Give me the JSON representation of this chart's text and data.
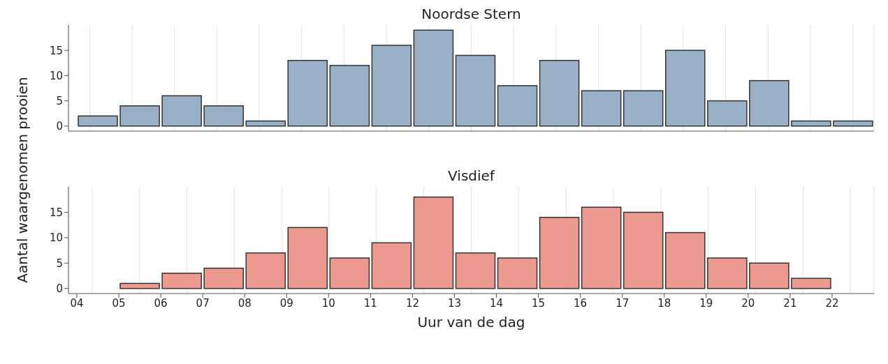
{
  "chart_data": [
    {
      "type": "histogram",
      "title": "Noordse Stern",
      "ylabel": "Aantal waargenomen prooien",
      "color": "#9ab0c7",
      "bins": [
        4,
        5,
        6,
        7,
        8,
        9,
        10,
        11,
        12,
        13,
        14,
        15,
        16,
        17,
        18,
        19,
        20,
        21,
        22,
        23
      ],
      "values": [
        2,
        4,
        6,
        4,
        1,
        13,
        12,
        16,
        19,
        14,
        8,
        13,
        7,
        7,
        15,
        5,
        9,
        1,
        1
      ],
      "xlim": [
        3.8,
        23
      ],
      "xticks": [
        4,
        5,
        6,
        7,
        8,
        9,
        10,
        11,
        12,
        13,
        14,
        15,
        16,
        17,
        18,
        19,
        20,
        21,
        22
      ],
      "ylim": [
        -1,
        20
      ],
      "yticks": [
        0,
        5,
        10,
        15
      ],
      "grid": "x",
      "tick_labels": "y"
    },
    {
      "type": "histogram",
      "title": "Visdief",
      "xlabel": "Uur van de dag",
      "color": "#ec9a90",
      "bins": [
        5,
        6,
        7,
        8,
        9,
        10,
        11,
        12,
        13,
        14,
        15,
        16,
        17,
        18,
        19,
        20,
        21,
        22
      ],
      "values": [
        1,
        3,
        4,
        7,
        12,
        6,
        9,
        18,
        7,
        6,
        14,
        16,
        15,
        11,
        6,
        5,
        2
      ],
      "xlim": [
        3.8,
        23
      ],
      "xticks": [
        {
          "value": 4,
          "label": "04"
        },
        {
          "value": 5,
          "label": "05"
        },
        {
          "value": 6,
          "label": "06"
        },
        {
          "value": 7,
          "label": "07"
        },
        {
          "value": 8,
          "label": "08"
        },
        {
          "value": 9,
          "label": "09"
        },
        10,
        11,
        12,
        13,
        14,
        15,
        16,
        17,
        18,
        19,
        20,
        21,
        22
      ],
      "ylim": [
        -1,
        20
      ],
      "yticks": [
        0,
        5,
        10,
        15
      ],
      "grid": "x"
    }
  ]
}
